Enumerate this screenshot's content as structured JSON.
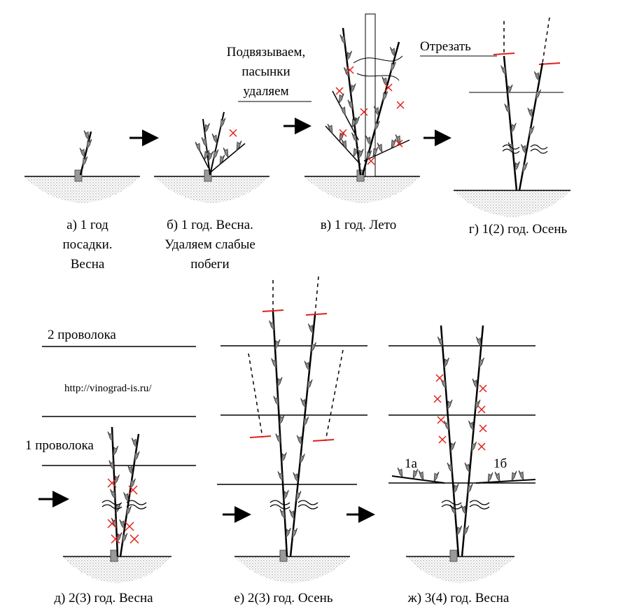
{
  "captions": {
    "a": [
      "а) 1 год",
      "посадки.",
      "Весна"
    ],
    "b": [
      "б) 1 год. Весна.",
      "Удаляем слабые",
      "побеги"
    ],
    "v": "в) 1 год. Лето",
    "g": "г) 1(2) год. Осень",
    "d": "д) 2(3) год. Весна",
    "e": "е) 2(3) год. Осень",
    "zh": "ж) 3(4) год. Весна"
  },
  "annotations": {
    "tie": [
      "Подвязываем,",
      "пасынки",
      "удаляем"
    ],
    "cut": "Отрезать",
    "wire2": "2 проволока",
    "wire1": "1 проволока",
    "url": "http://vinograd-is.ru/",
    "arm_1a": "1а",
    "arm_1b": "1б"
  },
  "colors": {
    "line": "#000000",
    "leaf": "#8a8a8a",
    "cut_mark": "#e0201a",
    "soil": "#9a9a9a"
  }
}
